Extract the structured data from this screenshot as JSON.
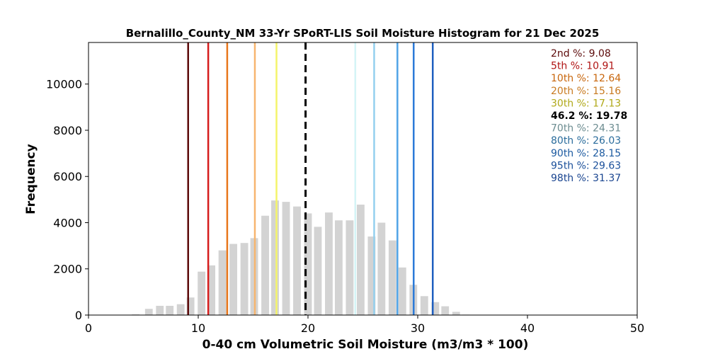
{
  "chart_data": {
    "type": "bar",
    "title": "Bernalillo_County_NM 33-Yr SPoRT-LIS Soil Moisture Histogram for 21 Dec 2025",
    "xlabel": "0-40 cm Volumetric Soil Moisture (m3/m3 * 100)",
    "ylabel": "Frequency",
    "xlim": [
      0,
      50
    ],
    "ylim": [
      0,
      11800
    ],
    "xticks": [
      "0",
      "10",
      "20",
      "30",
      "40",
      "50"
    ],
    "yticks": [
      "0",
      "2000",
      "4000",
      "6000",
      "8000",
      "10000"
    ],
    "xtick_values": [
      0,
      10,
      20,
      30,
      40,
      50
    ],
    "ytick_values": [
      0,
      2000,
      4000,
      6000,
      8000,
      10000
    ],
    "bar_color": "#d3d3d3",
    "bar_width": 0.7,
    "bins": {
      "x": [
        4.3,
        5.5,
        6.5,
        7.4,
        8.4,
        9.3,
        10.3,
        11.2,
        12.2,
        13.2,
        14.2,
        15.1,
        16.1,
        17.0,
        18.0,
        19.0,
        20.0,
        20.9,
        21.9,
        22.8,
        23.8,
        24.8,
        25.8,
        26.7,
        27.7,
        28.6,
        29.6,
        30.6,
        31.6,
        32.5,
        33.5,
        34.4,
        35.4
      ],
      "values": [
        30,
        270,
        400,
        400,
        470,
        760,
        1880,
        2150,
        2800,
        3080,
        3120,
        3330,
        4300,
        4960,
        4900,
        4700,
        4400,
        3820,
        4440,
        4100,
        4100,
        4780,
        3400,
        4000,
        3230,
        2060,
        1310,
        820,
        560,
        380,
        140,
        20,
        10
      ]
    },
    "percentile_lines": [
      {
        "label": "2nd %: 9.08",
        "value": 9.08,
        "color": "#5c0a0a",
        "dashed": false
      },
      {
        "label": "5th %: 10.91",
        "value": 10.91,
        "color": "#d61c1c",
        "dashed": false
      },
      {
        "label": "10th %: 12.64",
        "value": 12.64,
        "color": "#e8761b",
        "dashed": false
      },
      {
        "label": "20th %: 15.16",
        "value": 15.16,
        "color": "#f7b56e",
        "dashed": false
      },
      {
        "label": "30th %: 17.13",
        "value": 17.13,
        "color": "#f4f46a",
        "dashed": false
      },
      {
        "label": "46.2 %: 19.78",
        "value": 19.78,
        "color": "#000000",
        "dashed": true
      },
      {
        "label": "70th %: 24.31",
        "value": 24.31,
        "color": "#d4f4f6",
        "dashed": false
      },
      {
        "label": "80th %: 26.03",
        "value": 26.03,
        "color": "#94d0ee",
        "dashed": false
      },
      {
        "label": "90th %: 28.15",
        "value": 28.15,
        "color": "#4fa3e6",
        "dashed": false
      },
      {
        "label": "95th %: 29.63",
        "value": 29.63,
        "color": "#2b7ad8",
        "dashed": false
      },
      {
        "label": "98th %: 31.37",
        "value": 31.37,
        "color": "#1f5fc0",
        "dashed": false
      }
    ],
    "legend": {
      "position": "upper-right",
      "text_colors": [
        "#5c0a0a",
        "#b01414",
        "#c8660c",
        "#c87a20",
        "#b0a818",
        "#000000",
        "#6c8c90",
        "#2a6c9c",
        "#1c5aa0",
        "#1a4f9a",
        "#1a4590"
      ]
    },
    "grid": false
  }
}
